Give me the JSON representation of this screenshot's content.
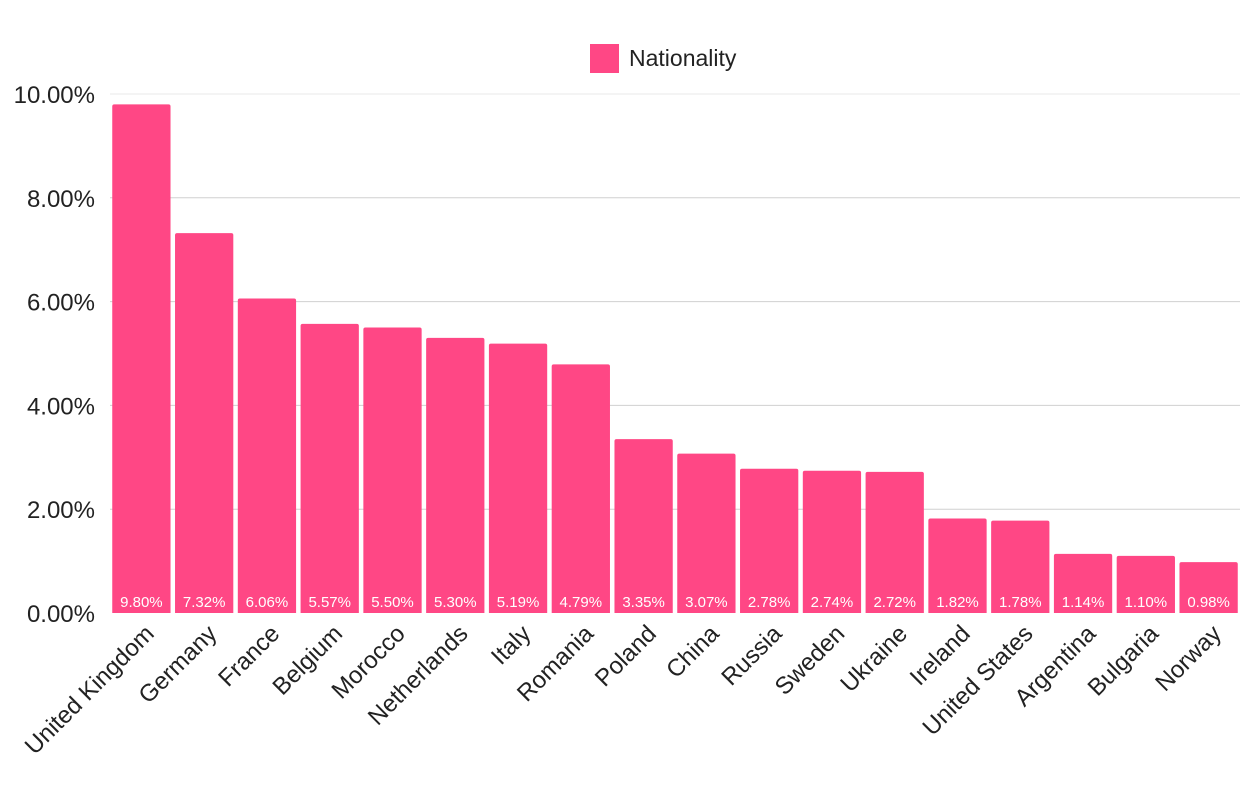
{
  "chart_data": {
    "type": "bar",
    "title": "",
    "xlabel": "",
    "ylabel": "",
    "ylim": [
      0,
      10
    ],
    "y_ticks": [
      0,
      2,
      4,
      6,
      8,
      10
    ],
    "y_tick_labels": [
      "0.00%",
      "2.00%",
      "4.00%",
      "6.00%",
      "8.00%",
      "10.00%"
    ],
    "grid": true,
    "legend_position": "top-center",
    "categories": [
      "United Kingdom",
      "Germany",
      "France",
      "Belgium",
      "Morocco",
      "Netherlands",
      "Italy",
      "Romania",
      "Poland",
      "China",
      "Russia",
      "Sweden",
      "Ukraine",
      "Ireland",
      "United States",
      "Argentina",
      "Bulgaria",
      "Norway"
    ],
    "series": [
      {
        "name": "Nationality",
        "color": "#ff4785",
        "values": [
          9.8,
          7.32,
          6.06,
          5.57,
          5.5,
          5.3,
          5.19,
          4.79,
          3.35,
          3.07,
          2.78,
          2.74,
          2.72,
          1.82,
          1.78,
          1.14,
          1.1,
          0.98
        ],
        "data_labels": [
          "9.80%",
          "7.32%",
          "6.06%",
          "5.57%",
          "5.50%",
          "5.30%",
          "5.19%",
          "4.79%",
          "3.35%",
          "3.07%",
          "2.78%",
          "2.74%",
          "2.72%",
          "1.82%",
          "1.78%",
          "1.14%",
          "1.10%",
          "0.98%"
        ]
      }
    ]
  }
}
